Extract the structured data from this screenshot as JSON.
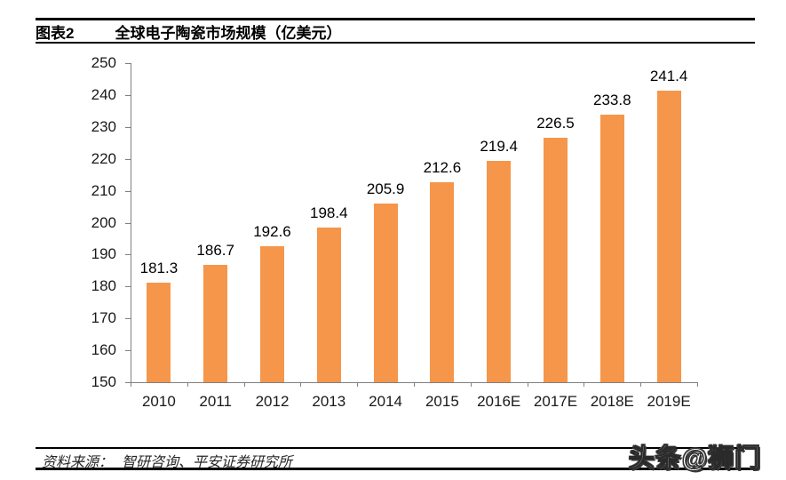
{
  "header": {
    "figure_label": "图表2",
    "title": "全球电子陶瓷市场规模（亿美元）"
  },
  "chart_data": {
    "type": "bar",
    "title": "全球电子陶瓷市场规模（亿美元）",
    "categories": [
      "2010",
      "2011",
      "2012",
      "2013",
      "2014",
      "2015",
      "2016E",
      "2017E",
      "2018E",
      "2019E"
    ],
    "values": [
      181.3,
      186.7,
      192.6,
      198.4,
      205.9,
      212.6,
      219.4,
      226.5,
      233.8,
      241.4
    ],
    "value_labels": [
      "181.3",
      "186.7",
      "192.6",
      "198.4",
      "205.9",
      "212.6",
      "219.4",
      "226.5",
      "233.8",
      "241.4"
    ],
    "xlabel": "",
    "ylabel": "",
    "ylim": [
      150,
      250
    ],
    "ytick_step": 10,
    "grid": false,
    "legend": false,
    "bar_color": "#F5964A",
    "axis_color": "#808080"
  },
  "footer": {
    "source_label": "资料来源：",
    "source_text": "智研咨询、平安证券研究所"
  },
  "watermark": {
    "text": "头条@狮门"
  }
}
